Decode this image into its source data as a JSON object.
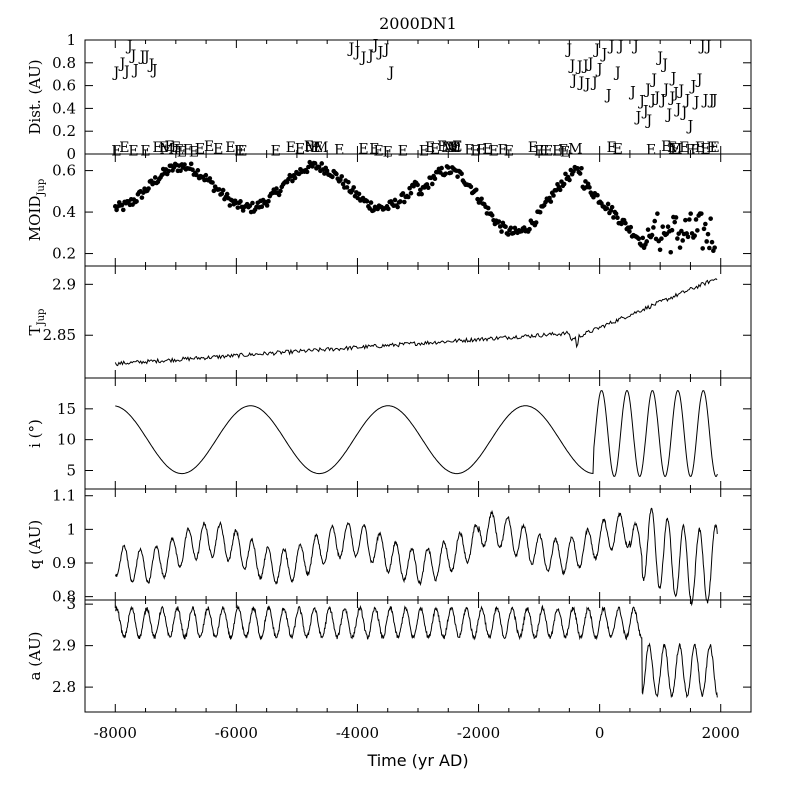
{
  "chart_data": {
    "title": "2000DN1",
    "xlabel": "Time (yr AD)",
    "xlim": [
      -8500,
      2500
    ],
    "xticks": [
      -8000,
      -6000,
      -4000,
      -2000,
      0,
      2000
    ],
    "x_tick_labels": [
      "-8000",
      "-6000",
      "-4000",
      "-2000",
      "0",
      "2000"
    ],
    "panels": [
      {
        "id": "dist",
        "type": "scatter",
        "ylabel": "Dist. (AU)",
        "ylim": [
          0,
          1
        ],
        "ytick_labels": [
          "0",
          "0.2",
          "0.4",
          "0.6",
          "0.8",
          "1"
        ],
        "yticks": [
          0,
          0.2,
          0.4,
          0.6,
          0.8,
          1
        ],
        "marker_labels": {
          "J": "J",
          "E": "E",
          "M": "M"
        },
        "series": {
          "J": [
            [
              -7980,
              0.72
            ],
            [
              -7880,
              0.8
            ],
            [
              -7810,
              0.73
            ],
            [
              -7760,
              0.95
            ],
            [
              -7700,
              0.87
            ],
            [
              -7660,
              0.74
            ],
            [
              -7550,
              0.86
            ],
            [
              -7480,
              0.86
            ],
            [
              -7400,
              0.79
            ],
            [
              -7350,
              0.74
            ],
            [
              -4100,
              0.93
            ],
            [
              -4000,
              0.9
            ],
            [
              -3900,
              0.85
            ],
            [
              -3780,
              0.87
            ],
            [
              -3700,
              0.96
            ],
            [
              -3620,
              0.9
            ],
            [
              -3520,
              0.92
            ],
            [
              -3440,
              0.72
            ],
            [
              -500,
              0.92
            ],
            [
              -450,
              0.78
            ],
            [
              -420,
              0.65
            ],
            [
              -330,
              0.77
            ],
            [
              -300,
              0.63
            ],
            [
              -230,
              0.78
            ],
            [
              -200,
              0.62
            ],
            [
              -150,
              0.8
            ],
            [
              -80,
              0.63
            ],
            [
              -40,
              0.92
            ],
            [
              0,
              0.75
            ],
            [
              80,
              0.88
            ],
            [
              150,
              0.52
            ],
            [
              200,
              0.95
            ],
            [
              300,
              0.72
            ],
            [
              350,
              0.95
            ],
            [
              550,
              0.55
            ],
            [
              600,
              0.95
            ],
            [
              640,
              0.33
            ],
            [
              700,
              0.47
            ],
            [
              760,
              0.38
            ],
            [
              800,
              0.57
            ],
            [
              820,
              0.3
            ],
            [
              880,
              0.48
            ],
            [
              900,
              0.66
            ],
            [
              950,
              0.5
            ],
            [
              1000,
              0.85
            ],
            [
              1050,
              0.48
            ],
            [
              1080,
              0.79
            ],
            [
              1100,
              0.57
            ],
            [
              1150,
              0.35
            ],
            [
              1200,
              0.5
            ],
            [
              1220,
              0.67
            ],
            [
              1260,
              0.54
            ],
            [
              1300,
              0.4
            ],
            [
              1350,
              0.56
            ],
            [
              1400,
              0.37
            ],
            [
              1450,
              0.48
            ],
            [
              1500,
              0.25
            ],
            [
              1550,
              0.6
            ],
            [
              1600,
              0.46
            ],
            [
              1650,
              0.66
            ],
            [
              1700,
              0.95
            ],
            [
              1750,
              0.48
            ],
            [
              1800,
              0.95
            ],
            [
              1850,
              0.48
            ],
            [
              1900,
              0.48
            ]
          ],
          "E": [
            [
              -7980,
              0.03
            ],
            [
              -7850,
              0.06
            ],
            [
              -7700,
              0.03
            ],
            [
              -7500,
              0.03
            ],
            [
              -7300,
              0.06
            ],
            [
              -7200,
              0.06
            ],
            [
              -7100,
              0.07
            ],
            [
              -7000,
              0.06
            ],
            [
              -6950,
              0.04
            ],
            [
              -6900,
              0.02
            ],
            [
              -6800,
              0.04
            ],
            [
              -6700,
              0.02
            ],
            [
              -6600,
              0.05
            ],
            [
              -6450,
              0.07
            ],
            [
              -6300,
              0.05
            ],
            [
              -6100,
              0.06
            ],
            [
              -5950,
              0.03
            ],
            [
              -5900,
              0.03
            ],
            [
              -5350,
              0.03
            ],
            [
              -5100,
              0.06
            ],
            [
              -4950,
              0.05
            ],
            [
              -4800,
              0.07
            ],
            [
              -4700,
              0.06
            ],
            [
              -4650,
              0.06
            ],
            [
              -4300,
              0.04
            ],
            [
              -3900,
              0.05
            ],
            [
              -3720,
              0.05
            ],
            [
              -3650,
              0.03
            ],
            [
              -3500,
              0.02
            ],
            [
              -3250,
              0.03
            ],
            [
              -2900,
              0.03
            ],
            [
              -2800,
              0.06
            ],
            [
              -2720,
              0.05
            ],
            [
              -2600,
              0.07
            ],
            [
              -2400,
              0.06
            ],
            [
              -2350,
              0.07
            ],
            [
              -2150,
              0.04
            ],
            [
              -2050,
              0.03
            ],
            [
              -1950,
              0.04
            ],
            [
              -1850,
              0.05
            ],
            [
              -1750,
              0.03
            ],
            [
              -1600,
              0.04
            ],
            [
              -1500,
              0.03
            ],
            [
              -1100,
              0.06
            ],
            [
              -1000,
              0.03
            ],
            [
              -920,
              0.03
            ],
            [
              -850,
              0.03
            ],
            [
              -700,
              0.03
            ],
            [
              -600,
              0.04
            ],
            [
              -570,
              0.02
            ],
            [
              200,
              0.06
            ],
            [
              300,
              0.05
            ],
            [
              850,
              0.04
            ],
            [
              1100,
              0.07
            ],
            [
              1200,
              0.06
            ],
            [
              1250,
              0.05
            ],
            [
              1400,
              0.06
            ],
            [
              1500,
              0.04
            ],
            [
              1580,
              0.04
            ],
            [
              1660,
              0.06
            ],
            [
              1750,
              0.05
            ],
            [
              1850,
              0.06
            ],
            [
              1900,
              0.06
            ]
          ],
          "M": [
            [
              -7150,
              0.05
            ],
            [
              -4750,
              0.06
            ],
            [
              -4600,
              0.06
            ],
            [
              -2500,
              0.06
            ],
            [
              -2450,
              0.06
            ],
            [
              -2400,
              0.06
            ],
            [
              -400,
              0.05
            ],
            [
              1250,
              0.05
            ]
          ]
        }
      },
      {
        "id": "moid",
        "type": "scatter",
        "ylabel": "MOID",
        "ylabel_sub": "Jup",
        "ylim": [
          0.14,
          0.68
        ],
        "ytick_labels": [
          "0.2",
          "0.4",
          "0.6"
        ],
        "yticks": [
          0.2,
          0.4,
          0.6
        ]
      },
      {
        "id": "tjup",
        "type": "line",
        "ylabel": "T",
        "ylabel_sub": "Jup",
        "ylim": [
          2.808,
          2.918
        ],
        "ytick_labels": [
          "2.85",
          "2.9"
        ],
        "yticks": [
          2.85,
          2.9
        ]
      },
      {
        "id": "incl",
        "type": "line",
        "ylabel": "i (°)",
        "ylim": [
          2,
          20
        ],
        "ytick_labels": [
          "5",
          "10",
          "15"
        ],
        "yticks": [
          5,
          10,
          15
        ]
      },
      {
        "id": "q",
        "type": "line",
        "ylabel": "q (AU)",
        "ylim": [
          0.79,
          1.12
        ],
        "ytick_labels": [
          "0.8",
          "0.9",
          "1",
          "1.1"
        ],
        "yticks": [
          0.8,
          0.9,
          1.0,
          1.1
        ]
      },
      {
        "id": "a",
        "type": "line",
        "ylabel": "a (AU)",
        "ylim": [
          2.74,
          3.01
        ],
        "ytick_labels": [
          "2.8",
          "2.9",
          "3"
        ],
        "yticks": [
          2.8,
          2.9,
          3.0
        ]
      }
    ]
  }
}
